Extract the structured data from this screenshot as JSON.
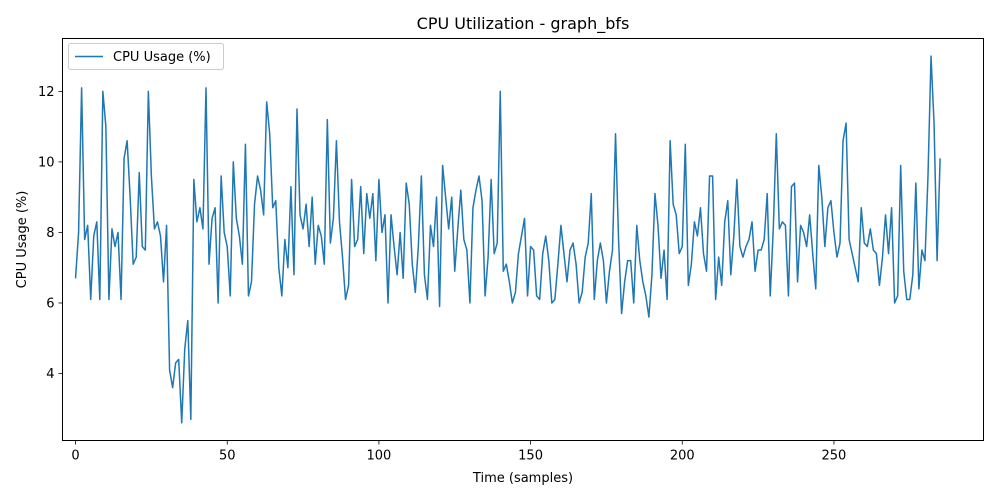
{
  "chart_data": {
    "type": "line",
    "title": "CPU Utilization - graph_bfs",
    "xlabel": "Time (samples)",
    "ylabel": "CPU Usage (%)",
    "xlim": [
      -4.3,
      299.3
    ],
    "ylim": [
      2.1,
      13.5
    ],
    "xticks": [
      0,
      50,
      100,
      150,
      200,
      250
    ],
    "yticks": [
      4,
      6,
      8,
      10,
      12
    ],
    "grid": false,
    "legend_position": "top-left",
    "series": [
      {
        "name": "CPU Usage (%)",
        "color": "#1f77b4",
        "values": [
          6.7,
          8.0,
          12.1,
          7.8,
          8.2,
          6.1,
          7.9,
          8.3,
          6.1,
          12.0,
          11.0,
          6.1,
          8.1,
          7.6,
          8.0,
          6.1,
          10.1,
          10.6,
          9.0,
          7.1,
          7.3,
          9.7,
          7.6,
          7.5,
          12.0,
          9.6,
          8.1,
          8.3,
          7.9,
          6.6,
          8.2,
          4.1,
          3.6,
          4.3,
          4.4,
          2.6,
          4.7,
          5.5,
          2.7,
          9.5,
          8.3,
          8.7,
          8.1,
          12.1,
          7.1,
          8.4,
          8.7,
          6.0,
          9.6,
          8.0,
          7.6,
          6.2,
          10.0,
          8.4,
          7.9,
          7.1,
          10.5,
          6.2,
          6.6,
          8.8,
          9.6,
          9.2,
          8.5,
          11.7,
          10.8,
          8.7,
          8.9,
          7.0,
          6.2,
          7.8,
          7.0,
          9.3,
          6.8,
          11.5,
          8.5,
          8.1,
          8.8,
          7.6,
          9.0,
          7.1,
          8.2,
          7.9,
          7.1,
          11.2,
          7.7,
          8.4,
          10.6,
          8.3,
          7.3,
          6.1,
          6.5,
          9.5,
          7.6,
          7.8,
          9.3,
          7.4,
          9.1,
          8.4,
          9.1,
          7.2,
          9.5,
          8.0,
          8.5,
          6.0,
          8.5,
          7.6,
          6.8,
          8.0,
          6.7,
          9.4,
          8.8,
          7.1,
          6.3,
          7.6,
          9.6,
          6.8,
          6.1,
          8.2,
          7.6,
          9.0,
          5.9,
          9.9,
          9.0,
          8.1,
          9.0,
          6.9,
          8.1,
          9.2,
          7.8,
          7.5,
          6.0,
          8.7,
          9.2,
          9.6,
          8.9,
          6.2,
          7.3,
          9.5,
          7.4,
          7.7,
          12.0,
          6.9,
          7.1,
          6.6,
          6.0,
          6.3,
          7.4,
          7.9,
          8.4,
          6.2,
          7.6,
          7.5,
          6.2,
          6.1,
          7.4,
          7.9,
          7.2,
          6.0,
          6.1,
          7.1,
          8.2,
          7.4,
          6.6,
          7.5,
          7.7,
          7.1,
          6.0,
          6.3,
          7.3,
          7.7,
          9.1,
          6.1,
          7.2,
          7.7,
          7.2,
          6.0,
          6.9,
          7.5,
          10.8,
          7.8,
          5.7,
          6.6,
          7.2,
          7.2,
          6.0,
          8.2,
          7.2,
          6.6,
          6.2,
          5.6,
          6.8,
          9.1,
          8.2,
          6.7,
          7.5,
          6.1,
          10.6,
          8.8,
          8.5,
          7.4,
          7.6,
          10.5,
          6.5,
          7.1,
          8.3,
          7.9,
          8.7,
          7.4,
          6.9,
          9.6,
          9.6,
          6.1,
          7.3,
          6.5,
          8.3,
          8.9,
          6.8,
          7.9,
          9.5,
          7.6,
          7.3,
          7.6,
          7.8,
          8.3,
          6.9,
          7.5,
          7.5,
          7.8,
          9.1,
          6.2,
          8.1,
          10.8,
          8.1,
          8.3,
          8.2,
          6.2,
          9.3,
          9.4,
          6.6,
          8.2,
          8.0,
          7.6,
          8.5,
          7.4,
          6.4,
          9.9,
          9.0,
          7.6,
          8.7,
          8.9,
          8.0,
          7.3,
          7.7,
          10.6,
          11.1,
          7.8,
          7.4,
          7.0,
          6.6,
          8.7,
          7.7,
          7.6,
          8.1,
          7.5,
          7.4,
          6.5,
          7.3,
          8.5,
          7.4,
          8.7,
          6.0,
          6.2,
          9.9,
          6.9,
          6.1,
          6.1,
          6.8,
          9.4,
          6.4,
          7.5,
          7.2,
          9.6,
          13.0,
          11.1,
          7.2,
          10.1
        ]
      }
    ]
  }
}
